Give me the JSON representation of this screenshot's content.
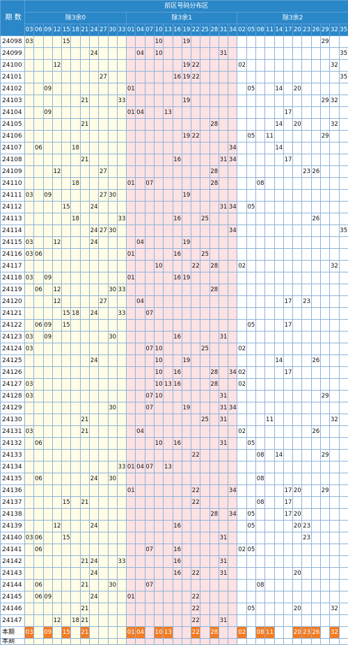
{
  "header": {
    "issue_label": "期 数",
    "title": "前区号码分布区",
    "groups": [
      "除3余0",
      "除3余1",
      "除3余2"
    ]
  },
  "columns": [
    "03",
    "06",
    "09",
    "12",
    "15",
    "18",
    "21",
    "24",
    "27",
    "30",
    "33",
    "01",
    "04",
    "07",
    "10",
    "13",
    "16",
    "19",
    "22",
    "25",
    "28",
    "31",
    "34",
    "02",
    "05",
    "08",
    "11",
    "14",
    "17",
    "20",
    "23",
    "26",
    "29",
    "32",
    "35"
  ],
  "rows": [
    {
      "issue": "24098",
      "nums": [
        "03",
        "15",
        "10",
        "19",
        "29"
      ]
    },
    {
      "issue": "24099",
      "nums": [
        "24",
        "04",
        "10",
        "31",
        "35"
      ]
    },
    {
      "issue": "24100",
      "nums": [
        "12",
        "19",
        "22",
        "02",
        "32"
      ]
    },
    {
      "issue": "24101",
      "nums": [
        "27",
        "16",
        "19",
        "22",
        "35"
      ]
    },
    {
      "issue": "24102",
      "nums": [
        "09",
        "01",
        "05",
        "14",
        "20"
      ]
    },
    {
      "issue": "24103",
      "nums": [
        "21",
        "33",
        "19",
        "29",
        "32"
      ]
    },
    {
      "issue": "24104",
      "nums": [
        "09",
        "01",
        "04",
        "13",
        "17"
      ]
    },
    {
      "issue": "24105",
      "nums": [
        "21",
        "28",
        "14",
        "20",
        "32"
      ]
    },
    {
      "issue": "24106",
      "nums": [
        "19",
        "22",
        "05",
        "11",
        "29"
      ]
    },
    {
      "issue": "24107",
      "nums": [
        "06",
        "18",
        "34",
        "14"
      ]
    },
    {
      "issue": "24108",
      "nums": [
        "21",
        "16",
        "31",
        "34",
        "17"
      ]
    },
    {
      "issue": "24109",
      "nums": [
        "12",
        "27",
        "28",
        "23",
        "26"
      ]
    },
    {
      "issue": "24110",
      "nums": [
        "18",
        "01",
        "07",
        "28",
        "08"
      ]
    },
    {
      "issue": "24111",
      "nums": [
        "03",
        "09",
        "27",
        "30",
        "19"
      ]
    },
    {
      "issue": "24112",
      "nums": [
        "15",
        "24",
        "31",
        "34",
        "05"
      ]
    },
    {
      "issue": "24113",
      "nums": [
        "18",
        "33",
        "16",
        "25",
        "26"
      ]
    },
    {
      "issue": "24114",
      "nums": [
        "24",
        "27",
        "30",
        "34",
        "35"
      ]
    },
    {
      "issue": "24115",
      "nums": [
        "03",
        "12",
        "24",
        "04",
        "19"
      ]
    },
    {
      "issue": "24116",
      "nums": [
        "03",
        "06",
        "01",
        "16",
        "25"
      ]
    },
    {
      "issue": "24117",
      "nums": [
        "10",
        "22",
        "28",
        "02",
        "32"
      ]
    },
    {
      "issue": "24118",
      "nums": [
        "03",
        "09",
        "01",
        "16",
        "19"
      ]
    },
    {
      "issue": "24119",
      "nums": [
        "06",
        "12",
        "30",
        "33",
        "28"
      ]
    },
    {
      "issue": "24120",
      "nums": [
        "12",
        "27",
        "04",
        "17",
        "23"
      ]
    },
    {
      "issue": "24121",
      "nums": [
        "15",
        "18",
        "24",
        "33",
        "07"
      ]
    },
    {
      "issue": "24122",
      "nums": [
        "06",
        "09",
        "15",
        "05",
        "17"
      ]
    },
    {
      "issue": "24123",
      "nums": [
        "03",
        "09",
        "30",
        "16",
        "31"
      ]
    },
    {
      "issue": "24124",
      "nums": [
        "03",
        "07",
        "10",
        "25",
        "02"
      ]
    },
    {
      "issue": "24125",
      "nums": [
        "24",
        "10",
        "19",
        "14",
        "26"
      ]
    },
    {
      "issue": "24126",
      "nums": [
        "10",
        "16",
        "28",
        "34",
        "02",
        "17"
      ]
    },
    {
      "issue": "24127",
      "nums": [
        "03",
        "10",
        "13",
        "16",
        "28",
        "02"
      ]
    },
    {
      "issue": "24128",
      "nums": [
        "03",
        "07",
        "10",
        "31",
        "29"
      ]
    },
    {
      "issue": "24129",
      "nums": [
        "30",
        "07",
        "19",
        "31",
        "34"
      ]
    },
    {
      "issue": "24130",
      "nums": [
        "21",
        "25",
        "31",
        "11",
        "32"
      ]
    },
    {
      "issue": "24131",
      "nums": [
        "03",
        "21",
        "04",
        "02",
        "26"
      ]
    },
    {
      "issue": "24132",
      "nums": [
        "06",
        "10",
        "16",
        "31",
        "05"
      ]
    },
    {
      "issue": "24133",
      "nums": [
        "22",
        "08",
        "14",
        "29"
      ]
    },
    {
      "issue": "24134",
      "nums": [
        "33",
        "01",
        "04",
        "07",
        "13"
      ]
    },
    {
      "issue": "24135",
      "nums": [
        "06",
        "24",
        "30",
        "08"
      ]
    },
    {
      "issue": "24136",
      "nums": [
        "01",
        "22",
        "34",
        "17",
        "20",
        "29"
      ]
    },
    {
      "issue": "24137",
      "nums": [
        "15",
        "21",
        "22",
        "08",
        "17"
      ]
    },
    {
      "issue": "24138",
      "nums": [
        "28",
        "34",
        "05",
        "17",
        "20"
      ]
    },
    {
      "issue": "24139",
      "nums": [
        "12",
        "24",
        "16",
        "05",
        "20",
        "23"
      ]
    },
    {
      "issue": "24140",
      "nums": [
        "03",
        "06",
        "15",
        "31",
        "23"
      ]
    },
    {
      "issue": "24141",
      "nums": [
        "06",
        "07",
        "16",
        "02",
        "05"
      ]
    },
    {
      "issue": "24142",
      "nums": [
        "21",
        "24",
        "33",
        "16",
        "31"
      ]
    },
    {
      "issue": "24143",
      "nums": [
        "24",
        "16",
        "22",
        "31",
        "20"
      ]
    },
    {
      "issue": "24144",
      "nums": [
        "06",
        "21",
        "30",
        "07",
        "08"
      ]
    },
    {
      "issue": "24145",
      "nums": [
        "06",
        "09",
        "24",
        "01",
        "22"
      ]
    },
    {
      "issue": "24146",
      "nums": [
        "21",
        "22",
        "05",
        "20",
        "32"
      ]
    },
    {
      "issue": "24147",
      "nums": [
        "12",
        "18",
        "21",
        "22",
        "31"
      ]
    }
  ],
  "current": {
    "label": "本期",
    "nums": [
      "03",
      "09",
      "15",
      "21",
      "01",
      "04",
      "10",
      "13",
      "22",
      "28",
      "02",
      "08",
      "11",
      "20",
      "23",
      "26",
      "32"
    ]
  },
  "next_label": "本期",
  "colors": {
    "header_blue": "#2a87c8",
    "group0_bg": "#fffde6",
    "group1_bg": "#fde2e4",
    "highlight": "#f47b20",
    "arrow": "#e8321c"
  }
}
